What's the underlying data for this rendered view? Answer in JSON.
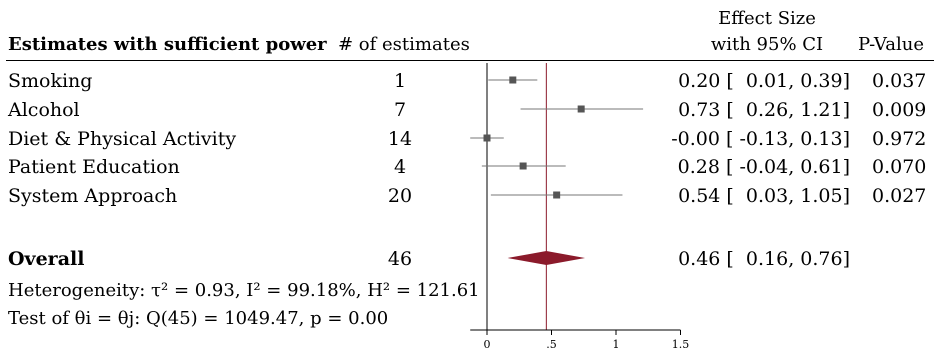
{
  "headers": {
    "title": "Estimates with sufficient power",
    "count": "# of estimates",
    "effect_line1": "Effect Size",
    "effect_line2": "with 95% CI",
    "pvalue": "P-Value"
  },
  "rows": [
    {
      "label": "Smoking",
      "n": "1",
      "ci": "0.20 [  0.01, 0.39]",
      "p": "0.037"
    },
    {
      "label": "Alcohol",
      "n": "7",
      "ci": "0.73 [  0.26, 1.21]",
      "p": "0.009"
    },
    {
      "label": "Diet & Physical Activity",
      "n": "14",
      "ci": "-0.00 [ -0.13, 0.13]",
      "p": "0.972"
    },
    {
      "label": "Patient Education",
      "n": "4",
      "ci": "0.28 [ -0.04, 0.61]",
      "p": "0.070"
    },
    {
      "label": "System Approach",
      "n": "20",
      "ci": "0.54 [  0.03, 1.05]",
      "p": "0.027"
    }
  ],
  "overall": {
    "label": "Overall",
    "n": "46",
    "ci": "0.46 [  0.16, 0.76]"
  },
  "heterogeneity": "Heterogeneity: τ² = 0.93, I² = 99.18%, H² = 121.61",
  "test": "Test of θi = θj: Q(45) = 1049.47, p = 0.00",
  "colors": {
    "marker": "#555555",
    "diamond": "#8b1a2b",
    "refline": "#8b1a2b",
    "axis": "#000000",
    "ci": "#777777"
  },
  "chart_data": {
    "type": "forest",
    "title": "",
    "xlabel": "",
    "xticks": [
      0,
      0.5,
      1,
      1.5
    ],
    "xtick_labels": [
      "0",
      ".5",
      "1",
      "1.5"
    ],
    "xlim": [
      -0.13,
      1.55
    ],
    "reference_line": 0.46,
    "series": [
      {
        "name": "Smoking",
        "estimate": 0.2,
        "lower": 0.01,
        "upper": 0.39
      },
      {
        "name": "Alcohol",
        "estimate": 0.73,
        "lower": 0.26,
        "upper": 1.21
      },
      {
        "name": "Diet & Physical Activity",
        "estimate": 0.0,
        "lower": -0.13,
        "upper": 0.13
      },
      {
        "name": "Patient Education",
        "estimate": 0.28,
        "lower": -0.04,
        "upper": 0.61
      },
      {
        "name": "System Approach",
        "estimate": 0.54,
        "lower": 0.03,
        "upper": 1.05
      }
    ],
    "overall": {
      "name": "Overall",
      "estimate": 0.46,
      "lower": 0.16,
      "upper": 0.76
    }
  }
}
